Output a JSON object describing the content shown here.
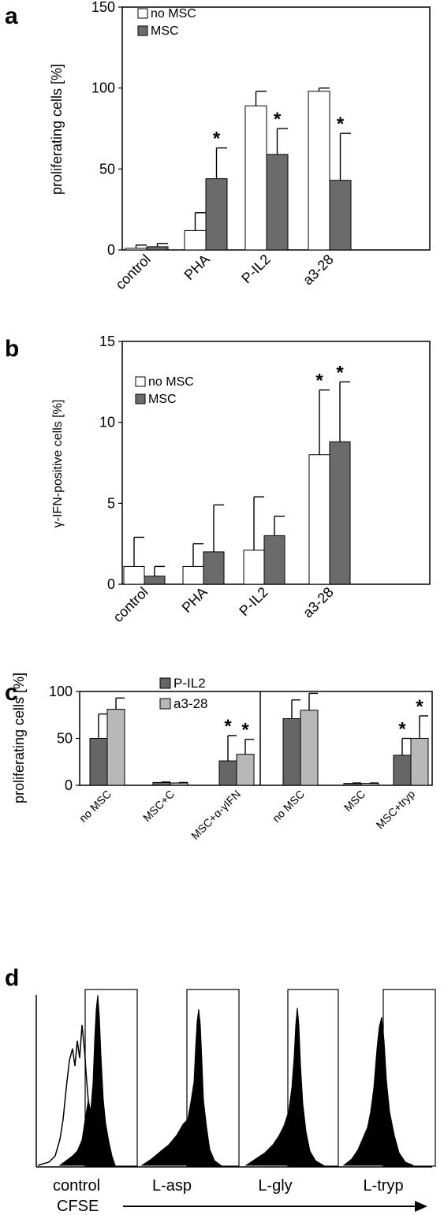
{
  "panels": {
    "a": {
      "letter": "a"
    },
    "b": {
      "letter": "b"
    },
    "c": {
      "letter": "c"
    },
    "d": {
      "letter": "d"
    }
  },
  "colors": {
    "no_msc": "#ffffff",
    "msc": "#6b6b6b",
    "pil2": "#666666",
    "a328": "#b8b8b8",
    "axis": "#000000"
  },
  "chart_data": [
    {
      "panel": "a",
      "type": "bar",
      "categories": [
        "control",
        "PHA",
        "P-IL2",
        "a3-28"
      ],
      "ylabel": "proliferating cells [%]",
      "ylim": [
        0,
        150
      ],
      "yticks": [
        0,
        50,
        100,
        150
      ],
      "legend": {
        "placement": "top-left",
        "entries": [
          "no MSC",
          "MSC"
        ]
      },
      "series": [
        {
          "name": "no MSC",
          "values": [
            1,
            12,
            89,
            98
          ],
          "errors": [
            2,
            11,
            9,
            2
          ],
          "significant": [
            false,
            false,
            false,
            false
          ]
        },
        {
          "name": "MSC",
          "values": [
            2,
            44,
            59,
            43
          ],
          "errors": [
            2,
            19,
            16,
            29
          ],
          "significant": [
            false,
            true,
            true,
            true
          ]
        }
      ],
      "annotations": [
        "*",
        "*",
        "*"
      ]
    },
    {
      "panel": "b",
      "type": "bar",
      "categories": [
        "control",
        "PHA",
        "P-IL2",
        "a3-28"
      ],
      "ylabel": "γ-IFN-positive cells  [%]",
      "ylim": [
        0,
        15
      ],
      "yticks": [
        0,
        5,
        10,
        15
      ],
      "legend": {
        "placement": "upper-left",
        "entries": [
          "no MSC",
          "MSC"
        ]
      },
      "series": [
        {
          "name": "no MSC",
          "values": [
            1.1,
            1.1,
            2.1,
            8.0
          ],
          "errors": [
            1.8,
            1.4,
            3.3,
            4.0
          ],
          "significant": [
            false,
            false,
            false,
            true
          ]
        },
        {
          "name": "MSC",
          "values": [
            0.5,
            2.0,
            3.0,
            8.8
          ],
          "errors": [
            0.6,
            2.9,
            1.2,
            3.7
          ],
          "significant": [
            false,
            false,
            false,
            true
          ]
        }
      ],
      "annotations": [
        "*",
        "*"
      ]
    },
    {
      "panel": "c",
      "type": "bar",
      "categories": [
        "no MSC",
        "MSC+C",
        "MSC+α-γIFN",
        "no MSC",
        "MSC",
        "MSC+tryp"
      ],
      "ylabel": "proliferating cells [%]",
      "ylim": [
        0,
        100
      ],
      "yticks": [
        0,
        50,
        100
      ],
      "legend": {
        "placement": "top-center",
        "entries": [
          "P-IL2",
          "a3-28"
        ]
      },
      "series": [
        {
          "name": "P-IL2",
          "values": [
            50,
            3,
            26,
            71,
            2,
            32
          ],
          "errors": [
            26,
            0.5,
            27,
            20,
            0.5,
            18
          ],
          "significant": [
            false,
            false,
            true,
            false,
            false,
            true
          ]
        },
        {
          "name": "a3-28",
          "values": [
            81,
            2.5,
            33,
            80,
            2,
            50
          ],
          "errors": [
            12,
            0.5,
            16,
            18,
            0.5,
            24
          ],
          "significant": [
            false,
            false,
            true,
            false,
            false,
            true
          ]
        }
      ],
      "annotations": [
        "*",
        "*",
        "*",
        "*"
      ]
    },
    {
      "panel": "d",
      "type": "area",
      "categories": [
        "control",
        "L-asp",
        "L-gly",
        "L-tryp"
      ],
      "xlabel": "CFSE",
      "gate": "proliferation gate (rectangle)"
    }
  ]
}
